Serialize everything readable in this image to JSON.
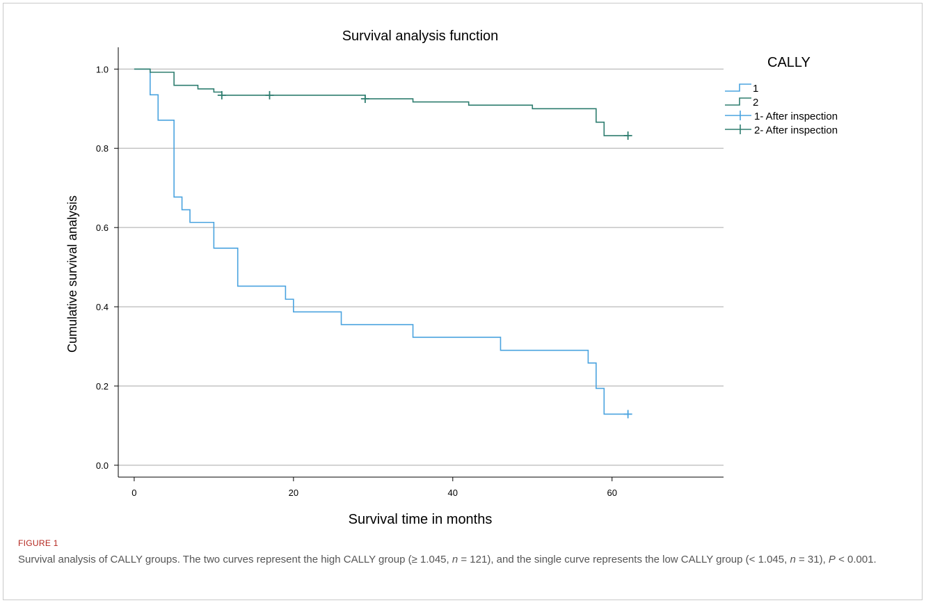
{
  "figure": {
    "label": "FIGURE 1",
    "caption_part1": "Survival analysis of CALLY groups. The two curves represent the high CALLY group (≥ 1.045, ",
    "caption_n1": "n",
    "caption_part2": " = 121), and the single curve represents the low CALLY group (< 1.045, ",
    "caption_n2": "n",
    "caption_part3": " = 31), ",
    "caption_p": "P",
    "caption_part4": " < 0.001."
  },
  "chart_data": {
    "type": "line",
    "step": true,
    "title": "Survival analysis function",
    "xlabel": "Survival time in months",
    "ylabel": "Cumulative survival analysis",
    "xlim": [
      -2,
      74
    ],
    "ylim": [
      -0.03,
      1.055
    ],
    "xticks": [
      0,
      20,
      40,
      60
    ],
    "yticks": [
      0.0,
      0.2,
      0.4,
      0.6,
      0.8,
      1.0
    ],
    "ytick_labels": [
      "0.0",
      "0.2",
      "0.4",
      "0.6",
      "0.8",
      "1.0"
    ],
    "grid": "horizontal",
    "legend_title": "CALLY",
    "legend_position": "right",
    "series": [
      {
        "name": "1",
        "censor_name": "1- After inspection",
        "color": "#4aa3df",
        "points": [
          [
            0,
            1.0
          ],
          [
            2,
            0.935
          ],
          [
            3,
            0.871
          ],
          [
            5,
            0.677
          ],
          [
            6,
            0.645
          ],
          [
            7,
            0.613
          ],
          [
            10,
            0.548
          ],
          [
            13,
            0.452
          ],
          [
            19,
            0.419
          ],
          [
            20,
            0.387
          ],
          [
            26,
            0.355
          ],
          [
            35,
            0.323
          ],
          [
            46,
            0.29
          ],
          [
            57,
            0.258
          ],
          [
            58,
            0.194
          ],
          [
            59,
            0.129
          ],
          [
            62,
            0.129
          ]
        ],
        "censored": [
          [
            62,
            0.129
          ]
        ]
      },
      {
        "name": "2",
        "censor_name": "2- After inspection",
        "color": "#2e7d6f",
        "points": [
          [
            0,
            1.0
          ],
          [
            2,
            0.992
          ],
          [
            5,
            0.959
          ],
          [
            8,
            0.95
          ],
          [
            10,
            0.942
          ],
          [
            11,
            0.934
          ],
          [
            29,
            0.925
          ],
          [
            35,
            0.917
          ],
          [
            42,
            0.909
          ],
          [
            50,
            0.9
          ],
          [
            58,
            0.866
          ],
          [
            59,
            0.832
          ],
          [
            62,
            0.832
          ]
        ],
        "censored": [
          [
            11,
            0.934
          ],
          [
            17,
            0.934
          ],
          [
            29,
            0.925
          ],
          [
            62,
            0.832
          ]
        ]
      }
    ]
  }
}
